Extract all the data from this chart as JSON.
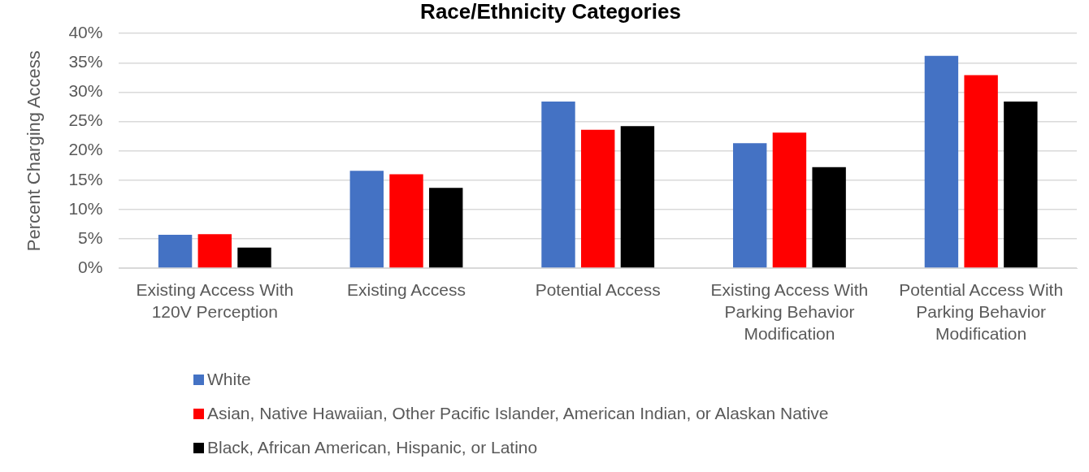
{
  "chart_data": {
    "type": "bar",
    "title": "Race/Ethnicity Categories",
    "ylabel": "Percent Charging Access",
    "categories": [
      "Existing Access With 120V Perception",
      "Existing Access",
      "Potential Access",
      "Existing Access With Parking Behavior Modification",
      "Potential Access With Parking Behavior Modification"
    ],
    "series": [
      {
        "name": "White",
        "color": "#4472c4",
        "values": [
          5.7,
          16.6,
          28.4,
          21.3,
          36.2
        ]
      },
      {
        "name": "Asian, Native Hawaiian, Other Pacific Islander, American Indian, or Alaskan Native",
        "color": "#ff0000",
        "values": [
          5.8,
          16.0,
          23.6,
          23.1,
          32.9
        ]
      },
      {
        "name": "Black, African American, Hispanic, or Latino",
        "color": "#000000",
        "values": [
          3.5,
          13.7,
          24.2,
          17.2,
          28.4
        ]
      }
    ],
    "ylim": [
      0,
      40
    ],
    "yticks": [
      {
        "value": 0,
        "label": "0%"
      },
      {
        "value": 5,
        "label": "5%"
      },
      {
        "value": 10,
        "label": "10%"
      },
      {
        "value": 15,
        "label": "15%"
      },
      {
        "value": 20,
        "label": "20%"
      },
      {
        "value": 25,
        "label": "25%"
      },
      {
        "value": 30,
        "label": "30%"
      },
      {
        "value": 35,
        "label": "35%"
      },
      {
        "value": 40,
        "label": "40%"
      }
    ],
    "grid": "y",
    "legend": "bottom"
  }
}
